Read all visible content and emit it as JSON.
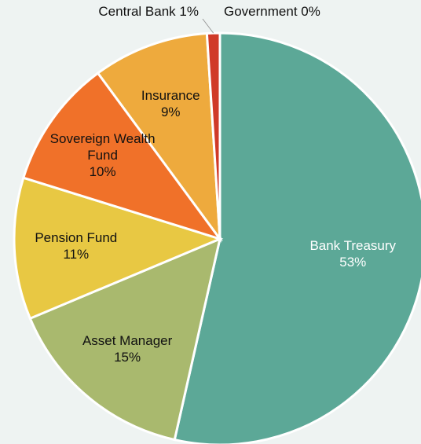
{
  "chart_data": {
    "type": "pie",
    "categories": [
      "Bank Treasury",
      "Asset Manager",
      "Pension Fund",
      "Sovereign Wealth Fund",
      "Insurance",
      "Central Bank",
      "Government"
    ],
    "values": [
      53,
      15,
      11,
      10,
      9,
      1,
      0
    ],
    "value_labels": [
      "53%",
      "15%",
      "11%",
      "10%",
      "9%",
      "1%",
      "0%"
    ],
    "colors": [
      "#5ca897",
      "#a9b96e",
      "#e8c843",
      "#f07129",
      "#eeaa3d",
      "#d03a28",
      "#8a8a8a"
    ]
  }
}
